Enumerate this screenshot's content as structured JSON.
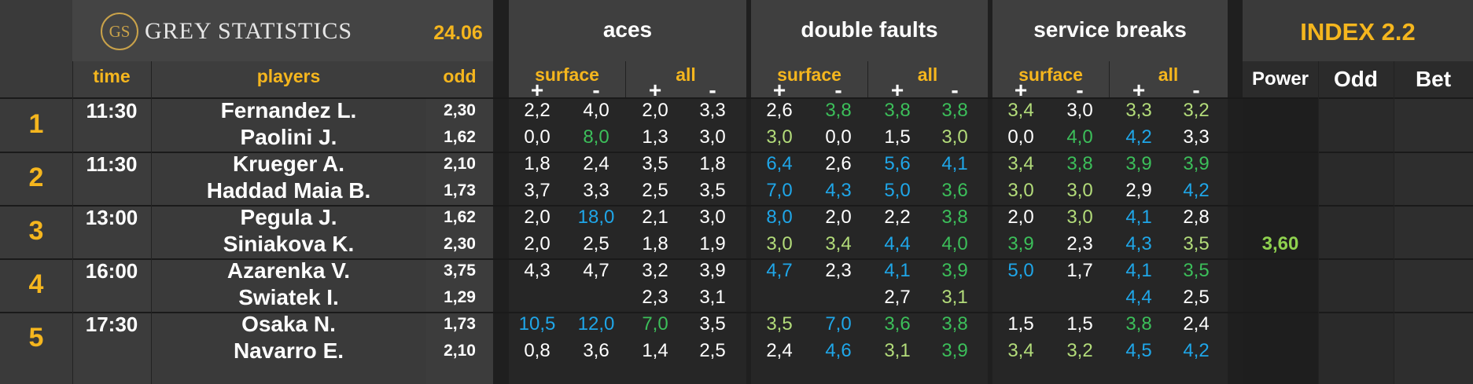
{
  "header": {
    "brand_initials": "GS",
    "brand_name": "GREY STATISTICS",
    "date": "24.06",
    "sections": [
      "aces",
      "double faults",
      "service breaks"
    ],
    "index_title": "INDEX 2.2",
    "sub_labels": [
      "surface",
      "all"
    ],
    "pm": [
      "+",
      "-"
    ],
    "time_label": "time",
    "players_label": "players",
    "odd_label": "odd",
    "right_columns": [
      "Power",
      "Odd",
      "Bet"
    ]
  },
  "colors": {
    "white": "#ffffff",
    "lightgreen": "#b3dc7a",
    "green": "#3cbf5a",
    "blue": "#1fa6e8",
    "accent": "#f5b61e"
  },
  "matches": [
    {
      "no": "1",
      "time": "11:30",
      "players": [
        {
          "name": "Fernandez L.",
          "odd": "2,30",
          "stats": [
            [
              "2,2",
              "white"
            ],
            [
              "4,0",
              "white"
            ],
            [
              "2,0",
              "white"
            ],
            [
              "3,3",
              "white"
            ],
            [
              "2,6",
              "white"
            ],
            [
              "3,8",
              "green"
            ],
            [
              "3,8",
              "green"
            ],
            [
              "3,8",
              "green"
            ],
            [
              "3,4",
              "lightgreen"
            ],
            [
              "3,0",
              "white"
            ],
            [
              "3,3",
              "lightgreen"
            ],
            [
              "3,2",
              "lightgreen"
            ]
          ]
        },
        {
          "name": "Paolini J.",
          "odd": "1,62",
          "stats": [
            [
              "0,0",
              "white"
            ],
            [
              "8,0",
              "green"
            ],
            [
              "1,3",
              "white"
            ],
            [
              "3,0",
              "white"
            ],
            [
              "3,0",
              "lightgreen"
            ],
            [
              "0,0",
              "white"
            ],
            [
              "1,5",
              "white"
            ],
            [
              "3,0",
              "lightgreen"
            ],
            [
              "0,0",
              "white"
            ],
            [
              "4,0",
              "green"
            ],
            [
              "4,2",
              "blue"
            ],
            [
              "3,3",
              "white"
            ]
          ]
        }
      ],
      "power": ""
    },
    {
      "no": "2",
      "time": "11:30",
      "players": [
        {
          "name": "Krueger A.",
          "odd": "2,10",
          "stats": [
            [
              "1,8",
              "white"
            ],
            [
              "2,4",
              "white"
            ],
            [
              "3,5",
              "white"
            ],
            [
              "1,8",
              "white"
            ],
            [
              "6,4",
              "blue"
            ],
            [
              "2,6",
              "white"
            ],
            [
              "5,6",
              "blue"
            ],
            [
              "4,1",
              "blue"
            ],
            [
              "3,4",
              "lightgreen"
            ],
            [
              "3,8",
              "green"
            ],
            [
              "3,9",
              "green"
            ],
            [
              "3,9",
              "green"
            ]
          ]
        },
        {
          "name": "Haddad Maia B.",
          "odd": "1,73",
          "stats": [
            [
              "3,7",
              "white"
            ],
            [
              "3,3",
              "white"
            ],
            [
              "2,5",
              "white"
            ],
            [
              "3,5",
              "white"
            ],
            [
              "7,0",
              "blue"
            ],
            [
              "4,3",
              "blue"
            ],
            [
              "5,0",
              "blue"
            ],
            [
              "3,6",
              "green"
            ],
            [
              "3,0",
              "lightgreen"
            ],
            [
              "3,0",
              "lightgreen"
            ],
            [
              "2,9",
              "white"
            ],
            [
              "4,2",
              "blue"
            ]
          ]
        }
      ],
      "power": ""
    },
    {
      "no": "3",
      "time": "13:00",
      "players": [
        {
          "name": "Pegula J.",
          "odd": "1,62",
          "stats": [
            [
              "2,0",
              "white"
            ],
            [
              "18,0",
              "blue"
            ],
            [
              "2,1",
              "white"
            ],
            [
              "3,0",
              "white"
            ],
            [
              "8,0",
              "blue"
            ],
            [
              "2,0",
              "white"
            ],
            [
              "2,2",
              "white"
            ],
            [
              "3,8",
              "green"
            ],
            [
              "2,0",
              "white"
            ],
            [
              "3,0",
              "lightgreen"
            ],
            [
              "4,1",
              "blue"
            ],
            [
              "2,8",
              "white"
            ]
          ]
        },
        {
          "name": "Siniakova K.",
          "odd": "2,30",
          "stats": [
            [
              "2,0",
              "white"
            ],
            [
              "2,5",
              "white"
            ],
            [
              "1,8",
              "white"
            ],
            [
              "1,9",
              "white"
            ],
            [
              "3,0",
              "lightgreen"
            ],
            [
              "3,4",
              "lightgreen"
            ],
            [
              "4,4",
              "blue"
            ],
            [
              "4,0",
              "green"
            ],
            [
              "3,9",
              "green"
            ],
            [
              "2,3",
              "white"
            ],
            [
              "4,3",
              "blue"
            ],
            [
              "3,5",
              "lightgreen"
            ]
          ]
        }
      ],
      "power": "3,60"
    },
    {
      "no": "4",
      "time": "16:00",
      "players": [
        {
          "name": "Azarenka V.",
          "odd": "3,75",
          "stats": [
            [
              "4,3",
              "white"
            ],
            [
              "4,7",
              "white"
            ],
            [
              "3,2",
              "white"
            ],
            [
              "3,9",
              "white"
            ],
            [
              "4,7",
              "blue"
            ],
            [
              "2,3",
              "white"
            ],
            [
              "4,1",
              "blue"
            ],
            [
              "3,9",
              "green"
            ],
            [
              "5,0",
              "blue"
            ],
            [
              "1,7",
              "white"
            ],
            [
              "4,1",
              "blue"
            ],
            [
              "3,5",
              "green"
            ]
          ]
        },
        {
          "name": "Swiatek I.",
          "odd": "1,29",
          "stats": [
            [
              "",
              "white"
            ],
            [
              "",
              "white"
            ],
            [
              "2,3",
              "white"
            ],
            [
              "3,1",
              "white"
            ],
            [
              "",
              "white"
            ],
            [
              "",
              "white"
            ],
            [
              "2,7",
              "white"
            ],
            [
              "3,1",
              "lightgreen"
            ],
            [
              "",
              "white"
            ],
            [
              "",
              "white"
            ],
            [
              "4,4",
              "blue"
            ],
            [
              "2,5",
              "white"
            ]
          ]
        }
      ],
      "power": ""
    },
    {
      "no": "5",
      "time": "17:30",
      "players": [
        {
          "name": "Osaka N.",
          "odd": "1,73",
          "stats": [
            [
              "10,5",
              "blue"
            ],
            [
              "12,0",
              "blue"
            ],
            [
              "7,0",
              "green"
            ],
            [
              "3,5",
              "white"
            ],
            [
              "3,5",
              "lightgreen"
            ],
            [
              "7,0",
              "blue"
            ],
            [
              "3,6",
              "green"
            ],
            [
              "3,8",
              "green"
            ],
            [
              "1,5",
              "white"
            ],
            [
              "1,5",
              "white"
            ],
            [
              "3,8",
              "green"
            ],
            [
              "2,4",
              "white"
            ]
          ]
        },
        {
          "name": "Navarro E.",
          "odd": "2,10",
          "stats": [
            [
              "0,8",
              "white"
            ],
            [
              "3,6",
              "white"
            ],
            [
              "1,4",
              "white"
            ],
            [
              "2,5",
              "white"
            ],
            [
              "2,4",
              "white"
            ],
            [
              "4,6",
              "blue"
            ],
            [
              "3,1",
              "lightgreen"
            ],
            [
              "3,9",
              "green"
            ],
            [
              "3,4",
              "lightgreen"
            ],
            [
              "3,2",
              "lightgreen"
            ],
            [
              "4,5",
              "blue"
            ],
            [
              "4,2",
              "blue"
            ]
          ]
        }
      ],
      "power": ""
    }
  ]
}
